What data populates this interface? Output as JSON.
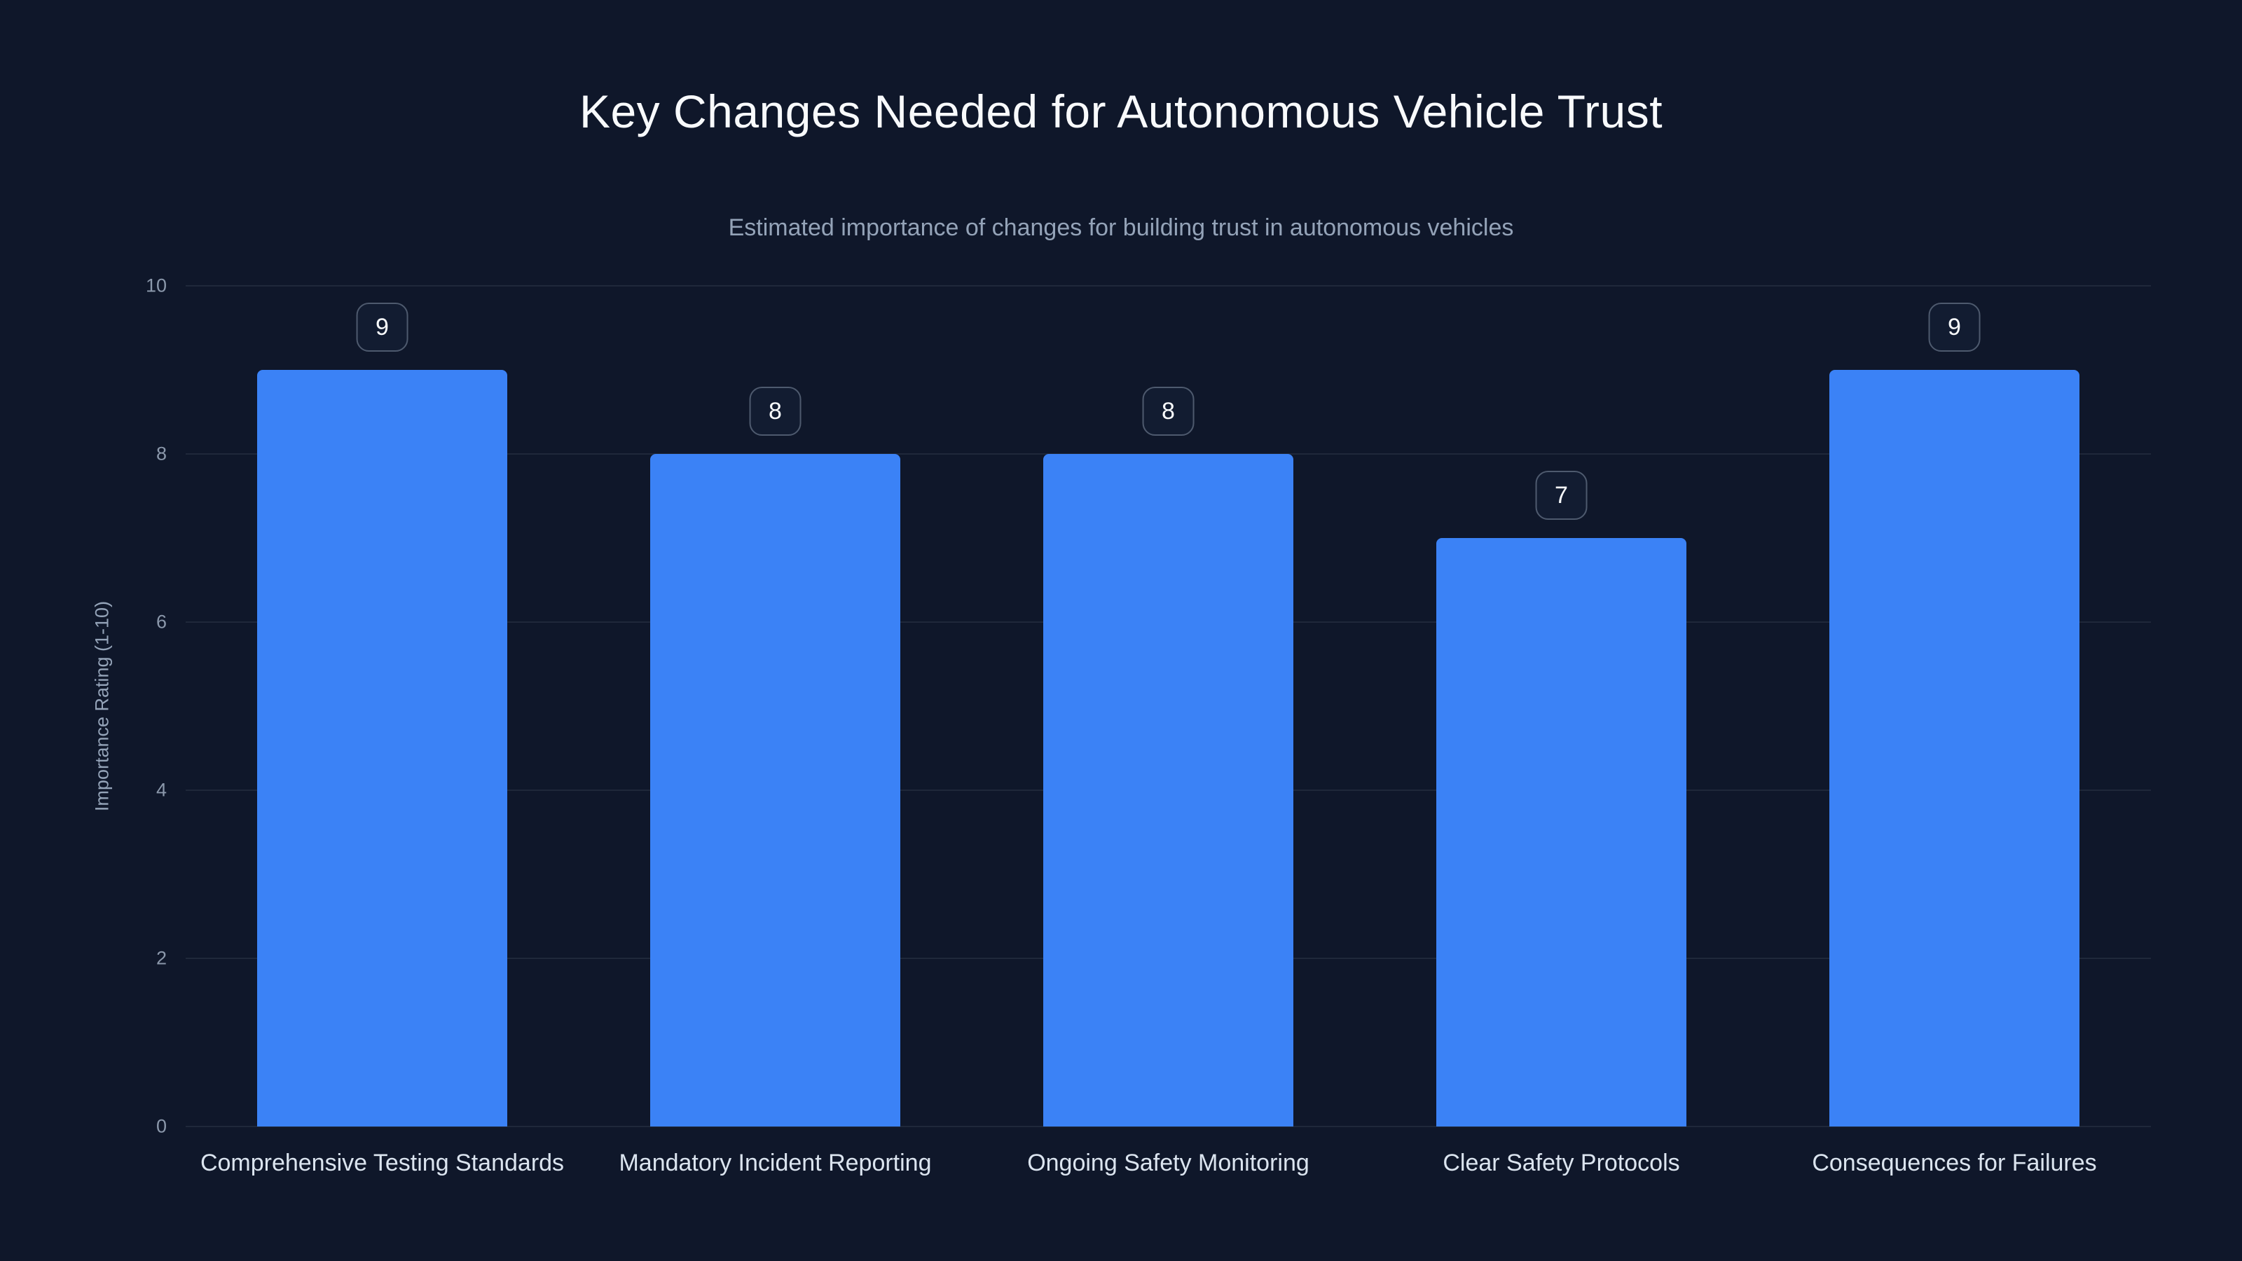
{
  "chart_data": {
    "type": "bar",
    "title": "Key Changes Needed for Autonomous Vehicle Trust",
    "subtitle": "Estimated importance of changes for building trust in autonomous vehicles",
    "categories": [
      "Comprehensive Testing Standards",
      "Mandatory Incident Reporting",
      "Ongoing Safety Monitoring",
      "Clear Safety Protocols",
      "Consequences for Failures"
    ],
    "values": [
      9,
      8,
      8,
      7,
      9
    ],
    "xlabel": "",
    "ylabel": "Importance Rating (1-10)",
    "ylim": [
      0,
      10
    ],
    "yticks": [
      0,
      2,
      4,
      6,
      8,
      10
    ],
    "grid": true,
    "legend": "none",
    "value_labels": true,
    "colors": {
      "bar": "#3b82f6",
      "background": "#0f172a",
      "title_text": "#f8fafc",
      "subtitle_text": "#94a3b8",
      "axis_text": "#8b98ab"
    }
  }
}
